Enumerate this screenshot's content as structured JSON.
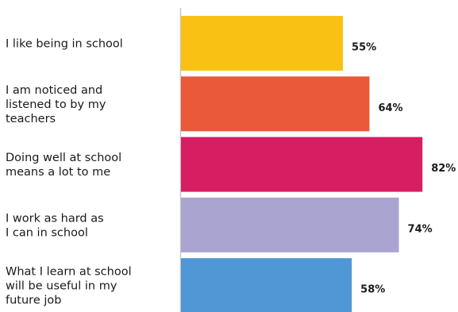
{
  "chart_data": {
    "type": "bar",
    "orientation": "horizontal",
    "categories": [
      [
        "I like being in school"
      ],
      [
        "I am noticed and",
        "listened to by my",
        "teachers"
      ],
      [
        "Doing well at school",
        "means a lot to me"
      ],
      [
        "I work as hard as",
        "I can in school"
      ],
      [
        "What I learn at school",
        "will be useful in my",
        "future job"
      ]
    ],
    "values": [
      55,
      64,
      82,
      74,
      58
    ],
    "value_labels": [
      "55%",
      "64%",
      "82%",
      "74%",
      "58%"
    ],
    "colors": [
      "#F9C113",
      "#EA5938",
      "#D81E62",
      "#AAA5D0",
      "#4F97D5"
    ],
    "xlim": [
      0,
      100
    ],
    "grid": false,
    "legend": "none"
  }
}
